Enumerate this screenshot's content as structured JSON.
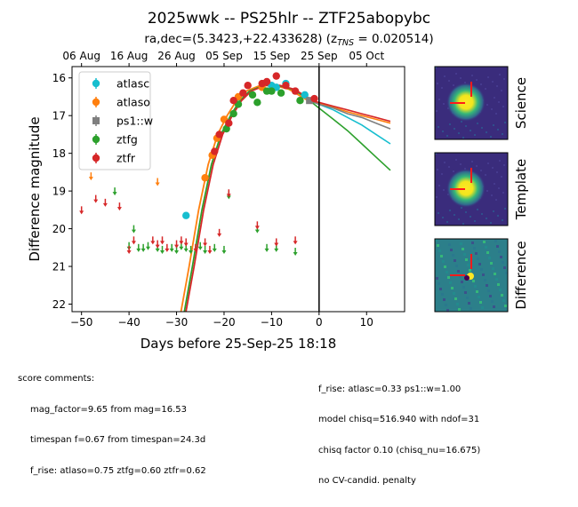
{
  "title": "2025wwk -- PS25hlr -- ZTF25abopybc",
  "subtitle": "ra,dec=(5.3423,+22.433628) (z",
  "subtitle_sub": "TNS",
  "subtitle_tail": " = 0.020514)",
  "chart_data": {
    "type": "scatter",
    "xlabel": "Days before 25-Sep-25 18:18",
    "ylabel": "Difference magnitude",
    "xlim": [
      -52,
      18
    ],
    "ylim": [
      22.2,
      15.7
    ],
    "y_inverted": true,
    "x_ticks": [
      -50,
      -40,
      -30,
      -20,
      -10,
      0,
      10
    ],
    "y_ticks": [
      16,
      17,
      18,
      19,
      20,
      21,
      22
    ],
    "top_axis_ticks": [
      {
        "label": "06 Aug",
        "x": -50
      },
      {
        "label": "16 Aug",
        "x": -40
      },
      {
        "label": "26 Aug",
        "x": -30
      },
      {
        "label": "05 Sep",
        "x": -20
      },
      {
        "label": "15 Sep",
        "x": -10
      },
      {
        "label": "25 Sep",
        "x": 0
      },
      {
        "label": "05 Oct",
        "x": 10
      }
    ],
    "vline_x": 0,
    "legend": {
      "position": "top-left",
      "entries": [
        "atlasc",
        "atlaso",
        "ps1::w",
        "ztfg",
        "ztfr"
      ]
    },
    "series": [
      {
        "name": "atlasc",
        "color": "#17becf",
        "marker": "circle",
        "points": [
          [
            -28,
            19.65
          ],
          [
            -10,
            16.2
          ],
          [
            -9,
            16.25
          ],
          [
            -7,
            16.15
          ],
          [
            -3,
            16.45
          ]
        ],
        "upper_limits": [],
        "model": [
          [
            -2,
            16.6
          ],
          [
            0,
            16.7
          ],
          [
            3,
            16.85
          ],
          [
            6,
            17.05
          ],
          [
            9,
            17.25
          ],
          [
            12,
            17.5
          ],
          [
            15,
            17.75
          ]
        ]
      },
      {
        "name": "atlaso",
        "color": "#ff7f0e",
        "marker": "circle",
        "points": [
          [
            -24,
            18.65
          ],
          [
            -22.5,
            18.05
          ],
          [
            -21.5,
            17.6
          ],
          [
            -20,
            17.1
          ],
          [
            -17,
            16.5
          ],
          [
            -12,
            16.25
          ]
        ],
        "upper_limits": [
          [
            -48,
            18.6
          ],
          [
            -34,
            18.75
          ]
        ],
        "model": [
          [
            -2,
            16.6
          ],
          [
            0,
            16.68
          ],
          [
            3,
            16.78
          ],
          [
            6,
            16.9
          ],
          [
            9,
            17.0
          ],
          [
            12,
            17.1
          ],
          [
            15,
            17.2
          ]
        ]
      },
      {
        "name": "ps1::w",
        "color": "#7f7f7f",
        "marker": "square",
        "points": [
          [
            -2,
            16.6
          ]
        ],
        "upper_limits": [],
        "model": [
          [
            -2,
            16.6
          ],
          [
            0,
            16.7
          ],
          [
            3,
            16.8
          ],
          [
            6,
            16.95
          ],
          [
            9,
            17.05
          ],
          [
            12,
            17.2
          ],
          [
            15,
            17.35
          ]
        ]
      },
      {
        "name": "ztfg",
        "color": "#2ca02c",
        "marker": "circle",
        "points": [
          [
            -19.5,
            17.35
          ],
          [
            -18,
            16.95
          ],
          [
            -17,
            16.7
          ],
          [
            -14,
            16.45
          ],
          [
            -13,
            16.65
          ],
          [
            -11,
            16.35
          ],
          [
            -10,
            16.35
          ],
          [
            -8,
            16.4
          ],
          [
            -4,
            16.6
          ]
        ],
        "upper_limits": [
          [
            -43,
            19.0
          ],
          [
            -39,
            20.0
          ],
          [
            -40,
            20.45
          ],
          [
            -38,
            20.5
          ],
          [
            -37,
            20.5
          ],
          [
            -36,
            20.45
          ],
          [
            -34,
            20.5
          ],
          [
            -33,
            20.55
          ],
          [
            -31,
            20.5
          ],
          [
            -30,
            20.55
          ],
          [
            -29,
            20.45
          ],
          [
            -28,
            20.5
          ],
          [
            -27,
            20.55
          ],
          [
            -25,
            20.45
          ],
          [
            -24,
            20.55
          ],
          [
            -22,
            20.5
          ],
          [
            -20,
            20.55
          ],
          [
            -19,
            19.1
          ],
          [
            -13,
            20.0
          ],
          [
            -11,
            20.5
          ],
          [
            -9,
            20.5
          ],
          [
            -5,
            20.6
          ]
        ],
        "model": [
          [
            -2,
            16.6
          ],
          [
            0,
            16.8
          ],
          [
            3,
            17.1
          ],
          [
            6,
            17.4
          ],
          [
            9,
            17.75
          ],
          [
            12,
            18.1
          ],
          [
            15,
            18.45
          ]
        ]
      },
      {
        "name": "ztfr",
        "color": "#d62728",
        "marker": "circle",
        "points": [
          [
            -22,
            17.95
          ],
          [
            -21,
            17.5
          ],
          [
            -19,
            17.2
          ],
          [
            -18,
            16.6
          ],
          [
            -16,
            16.4
          ],
          [
            -15,
            16.2
          ],
          [
            -12,
            16.15
          ],
          [
            -11,
            16.1
          ],
          [
            -9,
            15.95
          ],
          [
            -7,
            16.2
          ],
          [
            -5,
            16.35
          ],
          [
            -1,
            16.55
          ]
        ],
        "upper_limits": [
          [
            -50,
            19.5
          ],
          [
            -47,
            19.2
          ],
          [
            -45,
            19.3
          ],
          [
            -42,
            19.4
          ],
          [
            -40,
            20.55
          ],
          [
            -39,
            20.3
          ],
          [
            -35,
            20.3
          ],
          [
            -34,
            20.4
          ],
          [
            -33,
            20.3
          ],
          [
            -32,
            20.5
          ],
          [
            -30,
            20.4
          ],
          [
            -29,
            20.3
          ],
          [
            -28,
            20.35
          ],
          [
            -26,
            20.5
          ],
          [
            -24,
            20.35
          ],
          [
            -23,
            20.55
          ],
          [
            -21,
            20.1
          ],
          [
            -19,
            19.05
          ],
          [
            -13,
            19.9
          ],
          [
            -9,
            20.35
          ],
          [
            -5,
            20.3
          ]
        ],
        "model": [
          [
            -2,
            16.6
          ],
          [
            0,
            16.65
          ],
          [
            3,
            16.75
          ],
          [
            6,
            16.85
          ],
          [
            9,
            16.95
          ],
          [
            12,
            17.05
          ],
          [
            15,
            17.15
          ]
        ]
      }
    ],
    "rise_model": [
      [
        -29,
        22.4
      ],
      [
        -27,
        21.0
      ],
      [
        -25,
        19.5
      ],
      [
        -23,
        18.3
      ],
      [
        -21,
        17.5
      ],
      [
        -19,
        17.0
      ],
      [
        -17,
        16.6
      ],
      [
        -15,
        16.35
      ],
      [
        -12,
        16.2
      ],
      [
        -9,
        16.2
      ],
      [
        -6,
        16.3
      ],
      [
        -2,
        16.6
      ]
    ]
  },
  "cutouts": [
    "Science",
    "Template",
    "Difference"
  ],
  "comments": {
    "header": "score comments:",
    "left": [
      "mag_factor=9.65 from mag=16.53",
      "timespan f=0.67 from timespan=24.3d",
      "f_rise: atlaso=0.75 ztfg=0.60 ztfr=0.62"
    ],
    "right": [
      "f_rise: atlasc=0.33 ps1::w=1.00",
      "model chisq=516.940 with ndof=31",
      "chisq factor 0.10 (chisq_nu=16.675)",
      "no CV-candid. penalty"
    ]
  }
}
